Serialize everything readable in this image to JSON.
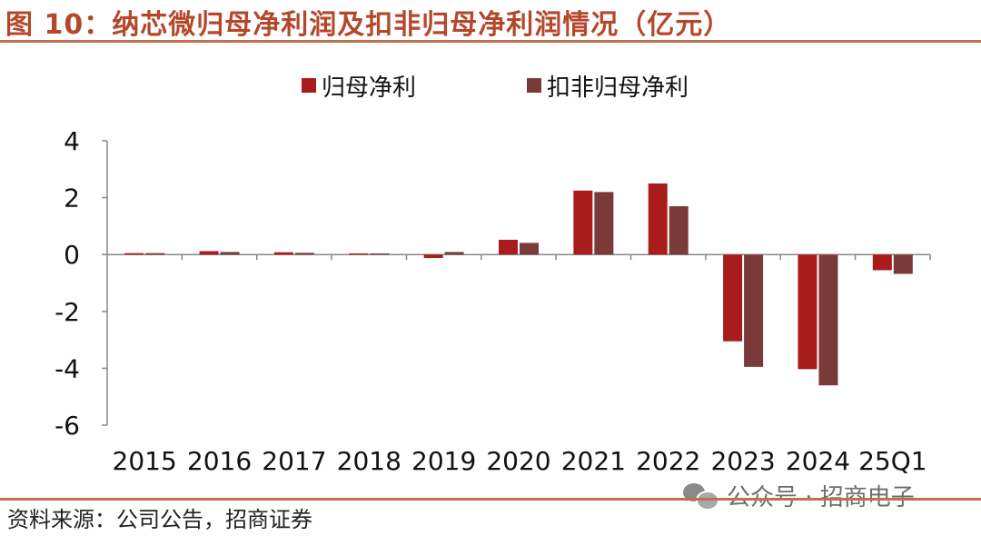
{
  "title": "图 10：纳芯微归母净利润及扣非归母净利润情况（亿元）",
  "source": "资料来源：公司公告，招商证券",
  "watermark": "公众号 · 招商电子",
  "colors": {
    "series1": "#a81c1c",
    "series2": "#7b3a3a",
    "rule": "#c0704f",
    "title": "#b5472b"
  },
  "chart_data": {
    "type": "bar",
    "categories": [
      "2015",
      "2016",
      "2017",
      "2018",
      "2019",
      "2020",
      "2021",
      "2022",
      "2023",
      "2024",
      "25Q1"
    ],
    "series": [
      {
        "name": "归母净利",
        "values": [
          0.05,
          0.12,
          0.08,
          0.04,
          -0.12,
          0.52,
          2.25,
          2.5,
          -3.05,
          -4.03,
          -0.55
        ]
      },
      {
        "name": "扣非归母净利",
        "values": [
          0.05,
          0.09,
          0.06,
          0.04,
          0.09,
          0.41,
          2.2,
          1.7,
          -3.95,
          -4.6,
          -0.68
        ]
      }
    ],
    "ylim": [
      -6,
      4
    ],
    "yticks": [
      "4",
      "2",
      "0",
      "-2",
      "-4",
      "-6"
    ],
    "legend_position": "top",
    "grid": false
  }
}
